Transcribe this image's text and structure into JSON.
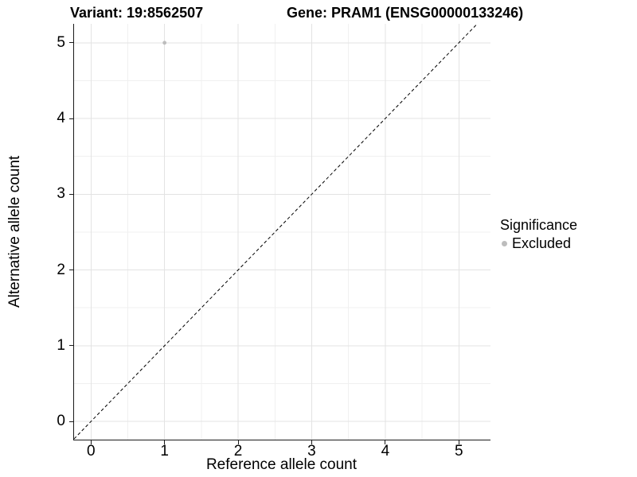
{
  "header": {
    "variant_title": "Variant: 19:8562507",
    "gene_title": "Gene: PRAM1 (ENSG00000133246)"
  },
  "legend": {
    "title": "Significance",
    "entries": [
      {
        "label": "Excluded",
        "color": "#bdbdbd",
        "marker": "circle"
      }
    ]
  },
  "chart_data": {
    "type": "scatter",
    "title": "Variant: 19:8562507   Gene: PRAM1 (ENSG00000133246)",
    "xlabel": "Reference allele count",
    "ylabel": "Alternative allele count",
    "xlim": [
      -0.23,
      5.43
    ],
    "ylim": [
      -0.24,
      5.25
    ],
    "x_ticks": [
      0,
      1,
      2,
      3,
      4,
      5
    ],
    "y_ticks": [
      0,
      1,
      2,
      3,
      4,
      5
    ],
    "x_minor_ticks": [
      0.5,
      1.5,
      2.5,
      3.5,
      4.5
    ],
    "y_minor_ticks": [
      0.5,
      1.5,
      2.5,
      3.5,
      4.5
    ],
    "grid": "major+minor",
    "legend_position": "right",
    "series": [
      {
        "name": "Excluded",
        "color": "#bdbdbd",
        "point_radius": 2.4,
        "points": [
          {
            "x": 1,
            "y": 5
          }
        ]
      }
    ],
    "reference_line": {
      "kind": "identity",
      "slope": 1,
      "intercept": 0,
      "style": "dashed",
      "color": "#000000"
    }
  },
  "style": {
    "background": "#ffffff",
    "grid_major": "#e3e3e3",
    "grid_minor": "#f0f0f0",
    "axis_line": "#1a1a1a",
    "text": "#000000"
  }
}
